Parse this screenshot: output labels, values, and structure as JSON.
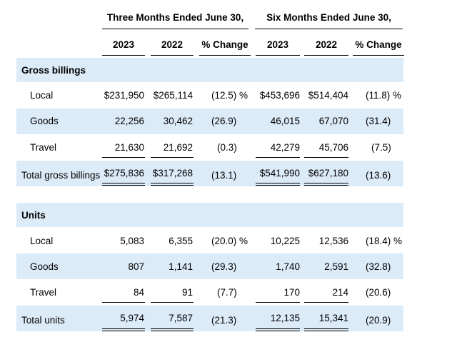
{
  "header": {
    "three_months": "Three Months Ended June 30,",
    "six_months": "Six Months Ended June 30,",
    "columns": [
      "2023",
      "2022",
      "% Change",
      "2023",
      "2022",
      "% Change"
    ]
  },
  "sections": [
    {
      "title": "Gross billings",
      "rows": [
        {
          "label": "Local",
          "v": [
            "$231,950",
            "$265,114",
            "(12.5) %",
            "$453,696",
            "$514,404",
            "(11.8) %"
          ]
        },
        {
          "label": "Goods",
          "v": [
            "22,256",
            "30,462",
            "(26.9)",
            "46,015",
            "67,070",
            "(31.4)"
          ]
        },
        {
          "label": "Travel",
          "v": [
            "21,630",
            "21,692",
            "(0.3)",
            "42,279",
            "45,706",
            "(7.5)"
          ]
        }
      ],
      "total": {
        "label": "Total gross billings",
        "v": [
          "$275,836",
          "$317,268",
          "(13.1)",
          "$541,990",
          "$627,180",
          "(13.6)"
        ]
      }
    },
    {
      "title": "Units",
      "rows": [
        {
          "label": "Local",
          "v": [
            "5,083",
            "6,355",
            "(20.0) %",
            "10,225",
            "12,536",
            "(18.4) %"
          ]
        },
        {
          "label": "Goods",
          "v": [
            "807",
            "1,141",
            "(29.3)",
            "1,740",
            "2,591",
            "(32.8)"
          ]
        },
        {
          "label": "Travel",
          "v": [
            "84",
            "91",
            "(7.7)",
            "170",
            "214",
            "(20.6)"
          ]
        }
      ],
      "total": {
        "label": "Total units",
        "v": [
          "5,974",
          "7,587",
          "(21.3)",
          "12,135",
          "15,341",
          "(20.9)"
        ]
      }
    }
  ]
}
